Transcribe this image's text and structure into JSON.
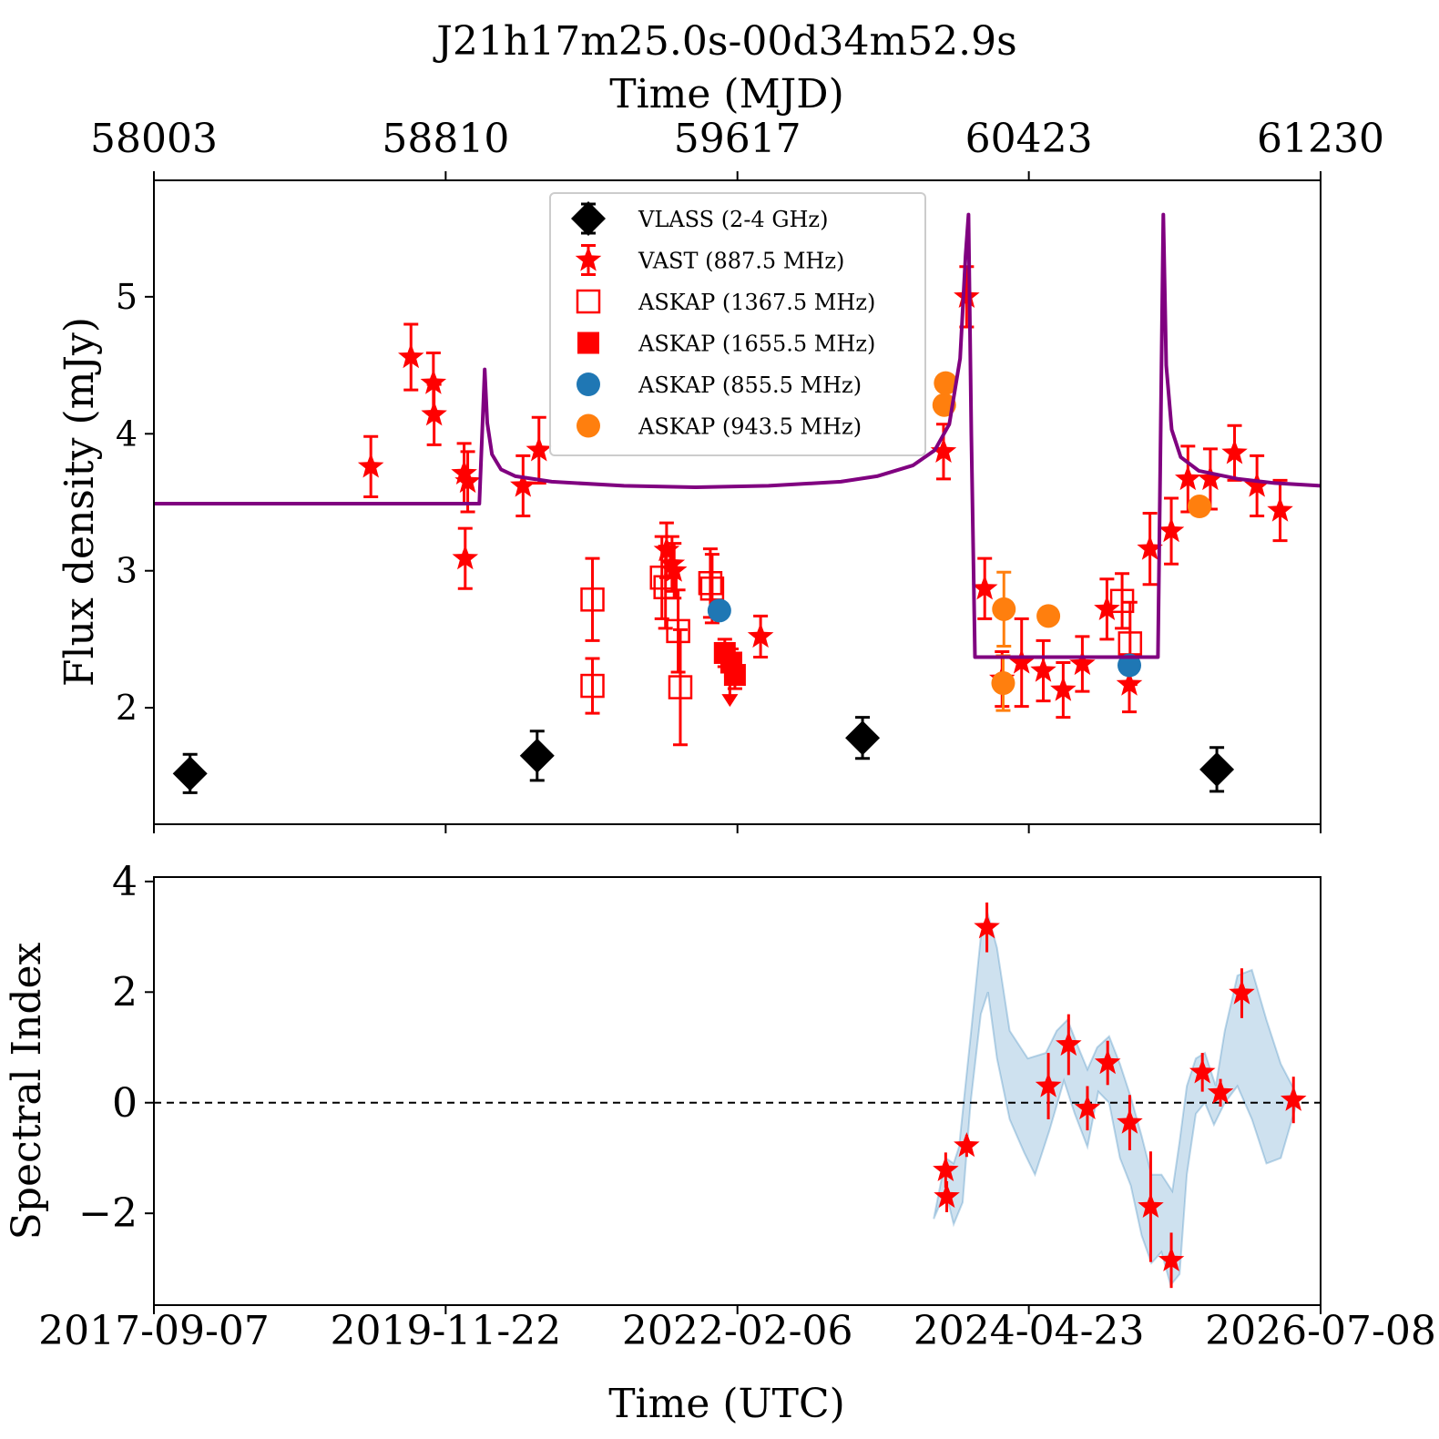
{
  "chart_data": {
    "title": "J21h17m25.0s-00d34m52.9s",
    "type": "scatter",
    "top_axis": {
      "label": "Time (MJD)",
      "ticks": [
        58003,
        58810,
        59617,
        60423,
        61230
      ]
    },
    "bottom_axis": {
      "label": "Time (UTC)",
      "ticks": [
        "2017-09-07",
        "2019-11-22",
        "2022-02-06",
        "2024-04-23",
        "2026-07-08"
      ],
      "range_mjd": [
        58003,
        61230
      ]
    },
    "flux_panel": {
      "ylabel": "Flux density (mJy)",
      "ylim": [
        1.15,
        5.85
      ],
      "yticks": [
        2,
        3,
        4,
        5
      ],
      "legend": {
        "placement": "upper-center",
        "entries": [
          "VLASS (2-4 GHz)",
          "VAST (887.5 MHz)",
          "ASKAP (1367.5 MHz)",
          "ASKAP (1655.5 MHz)",
          "ASKAP (855.5 MHz)",
          "ASKAP (943.5 MHz)"
        ]
      },
      "colors": {
        "red": "#ff0000",
        "blue": "#1f77b4",
        "orange": "#ff7f0e",
        "black": "#000000",
        "model": "#800080"
      },
      "series": [
        {
          "name": "VLASS (2-4 GHz)",
          "marker": "diamond",
          "color": "#000000",
          "points": [
            [
              58103,
              1.52,
              0.14
            ],
            [
              59063,
              1.65,
              0.18
            ],
            [
              59963,
              1.78,
              0.15
            ],
            [
              60943,
              1.55,
              0.16
            ]
          ]
        },
        {
          "name": "VAST (887.5 MHz)",
          "marker": "star",
          "color": "#ff0000",
          "points": [
            [
              58603,
              3.76,
              0.22
            ],
            [
              58714,
              4.56,
              0.24
            ],
            [
              58776,
              4.37,
              0.22
            ],
            [
              58778,
              4.14,
              0.22
            ],
            [
              58861,
              3.71,
              0.22
            ],
            [
              58864,
              3.09,
              0.22
            ],
            [
              58871,
              3.65,
              0.22
            ],
            [
              59024,
              3.62,
              0.22
            ],
            [
              59068,
              3.88,
              0.24
            ],
            [
              59421,
              3.15,
              0.2
            ],
            [
              59436,
              3.05,
              0.2
            ],
            [
              59442,
              3.0,
              0.2
            ],
            [
              59681,
              2.52,
              0.15
            ],
            [
              60187,
              3.87,
              0.2
            ],
            [
              60251,
              5.0,
              0.22
            ],
            [
              60301,
              2.87,
              0.22
            ],
            [
              60349,
              2.21,
              0.2
            ],
            [
              60403,
              2.33,
              0.32
            ],
            [
              60463,
              2.27,
              0.22
            ],
            [
              60518,
              2.13,
              0.2
            ],
            [
              60571,
              2.32,
              0.2
            ],
            [
              60639,
              2.72,
              0.22
            ],
            [
              60701,
              2.17,
              0.2
            ],
            [
              60758,
              3.16,
              0.26
            ],
            [
              60817,
              3.29,
              0.24
            ],
            [
              60863,
              3.67,
              0.24
            ],
            [
              60925,
              3.67,
              0.22
            ],
            [
              60992,
              3.86,
              0.2
            ],
            [
              61054,
              3.62,
              0.22
            ],
            [
              61118,
              3.44,
              0.22
            ]
          ]
        },
        {
          "name": "ASKAP (1367.5 MHz)",
          "marker": "open-square",
          "color": "#ff0000",
          "points": [
            [
              59216,
              2.79,
              0.3
            ],
            [
              59216,
              2.16,
              0.2
            ],
            [
              59408,
              2.95,
              0.3
            ],
            [
              59418,
              2.88,
              0.3
            ],
            [
              59453,
              2.56,
              0.3
            ],
            [
              59459,
              2.15,
              0.42
            ],
            [
              59542,
              2.91,
              0.25
            ],
            [
              59547,
              2.87,
              0.25
            ],
            [
              60681,
              2.78,
              0.2
            ],
            [
              60703,
              2.47,
              0.3
            ]
          ]
        },
        {
          "name": "ASKAP (1655.5 MHz)",
          "marker": "filled-square",
          "color": "#ff0000",
          "points": [
            [
              59582,
              2.4,
              0.1
            ],
            [
              59600,
              2.33,
              0.1
            ],
            [
              59610,
              2.24,
              0.1
            ]
          ],
          "upper_limit": [
            59596,
            2.1
          ]
        },
        {
          "name": "ASKAP (855.5 MHz)",
          "marker": "circle",
          "color": "#1f77b4",
          "points": [
            [
              59567,
              2.71,
              0
            ],
            [
              60701,
              2.31,
              0
            ]
          ]
        },
        {
          "name": "ASKAP (943.5 MHz)",
          "marker": "circle",
          "color": "#ff7f0e",
          "points": [
            [
              60189,
              4.21,
              0
            ],
            [
              60193,
              4.37,
              0
            ],
            [
              60352,
              2.18,
              0.2
            ],
            [
              60354,
              2.72,
              0.27
            ],
            [
              60477,
              2.67,
              0
            ],
            [
              60895,
              3.47,
              0
            ]
          ]
        }
      ],
      "model_curve": [
        [
          58003,
          3.49
        ],
        [
          58853,
          3.49
        ],
        [
          58903,
          3.49
        ],
        [
          58918,
          4.47
        ],
        [
          58925,
          4.08
        ],
        [
          58938,
          3.85
        ],
        [
          58963,
          3.74
        ],
        [
          59003,
          3.69
        ],
        [
          59103,
          3.65
        ],
        [
          59303,
          3.62
        ],
        [
          59503,
          3.61
        ],
        [
          59703,
          3.62
        ],
        [
          59903,
          3.65
        ],
        [
          60003,
          3.69
        ],
        [
          60103,
          3.77
        ],
        [
          60163,
          3.88
        ],
        [
          60203,
          4.07
        ],
        [
          60233,
          4.55
        ],
        [
          60248,
          5.3
        ],
        [
          60256,
          5.6
        ],
        [
          60264,
          4.0
        ],
        [
          60274,
          2.37
        ],
        [
          60503,
          2.37
        ],
        [
          60740,
          2.37
        ],
        [
          60780,
          2.37
        ],
        [
          60795,
          5.6
        ],
        [
          60803,
          4.5
        ],
        [
          60818,
          4.03
        ],
        [
          60843,
          3.83
        ],
        [
          60893,
          3.73
        ],
        [
          61003,
          3.67
        ],
        [
          61103,
          3.64
        ],
        [
          61230,
          3.62
        ]
      ]
    },
    "spectral_panel": {
      "ylabel": "Spectral Index",
      "ylim": [
        -3.66,
        4.08
      ],
      "yticks": [
        -2,
        0,
        2,
        4
      ],
      "reference_line": 0,
      "points": [
        [
          60193,
          -1.22,
          0.32
        ],
        [
          60196,
          -1.7,
          0.28
        ],
        [
          60251,
          -0.78,
          0.2
        ],
        [
          60307,
          3.17,
          0.45
        ],
        [
          60477,
          0.3,
          0.6
        ],
        [
          60533,
          1.05,
          0.55
        ],
        [
          60585,
          -0.1,
          0.4
        ],
        [
          60641,
          0.72,
          0.4
        ],
        [
          60702,
          -0.36,
          0.5
        ],
        [
          60760,
          -1.88,
          1.0
        ],
        [
          60817,
          -2.85,
          0.5
        ],
        [
          60903,
          0.55,
          0.35
        ],
        [
          60953,
          0.18,
          0.25
        ],
        [
          61012,
          1.98,
          0.45
        ],
        [
          61155,
          0.05,
          0.42
        ]
      ],
      "band_upper": [
        [
          60193,
          -1.0
        ],
        [
          60215,
          -1.1
        ],
        [
          60230,
          -0.8
        ],
        [
          60262,
          1.2
        ],
        [
          60290,
          3.0
        ],
        [
          60310,
          3.4
        ],
        [
          60335,
          2.8
        ],
        [
          60370,
          1.3
        ],
        [
          60420,
          0.8
        ],
        [
          60470,
          0.9
        ],
        [
          60500,
          1.3
        ],
        [
          60530,
          1.5
        ],
        [
          60560,
          1.0
        ],
        [
          60585,
          0.6
        ],
        [
          60612,
          1.0
        ],
        [
          60645,
          1.2
        ],
        [
          60675,
          0.7
        ],
        [
          60705,
          0.1
        ],
        [
          60735,
          -0.6
        ],
        [
          60762,
          -1.3
        ],
        [
          60790,
          -1.3
        ],
        [
          60820,
          -1.6
        ],
        [
          60840,
          -0.7
        ],
        [
          60860,
          0.3
        ],
        [
          60885,
          0.8
        ],
        [
          60910,
          0.9
        ],
        [
          60940,
          0.3
        ],
        [
          60965,
          1.3
        ],
        [
          61000,
          2.3
        ],
        [
          61040,
          2.4
        ],
        [
          61080,
          1.5
        ],
        [
          61120,
          0.7
        ],
        [
          61160,
          0.2
        ]
      ],
      "band_lower": [
        [
          60160,
          -2.1
        ],
        [
          60193,
          -1.6
        ],
        [
          60215,
          -2.2
        ],
        [
          60240,
          -1.8
        ],
        [
          60262,
          0.0
        ],
        [
          60290,
          1.6
        ],
        [
          60310,
          2.0
        ],
        [
          60335,
          0.8
        ],
        [
          60370,
          -0.3
        ],
        [
          60410,
          -0.9
        ],
        [
          60440,
          -1.3
        ],
        [
          60480,
          -0.5
        ],
        [
          60520,
          0.4
        ],
        [
          60550,
          -0.2
        ],
        [
          60585,
          -0.8
        ],
        [
          60615,
          0.2
        ],
        [
          60645,
          0.0
        ],
        [
          60675,
          -1.0
        ],
        [
          60705,
          -1.5
        ],
        [
          60735,
          -2.4
        ],
        [
          60762,
          -2.9
        ],
        [
          60790,
          -2.7
        ],
        [
          60815,
          -3.3
        ],
        [
          60840,
          -3.1
        ],
        [
          60860,
          -1.3
        ],
        [
          60885,
          -0.2
        ],
        [
          60910,
          0.0
        ],
        [
          60935,
          -0.4
        ],
        [
          60965,
          0.0
        ],
        [
          61000,
          0.3
        ],
        [
          61040,
          -0.3
        ],
        [
          61080,
          -1.1
        ],
        [
          61120,
          -1.0
        ],
        [
          61160,
          -0.1
        ]
      ]
    }
  }
}
